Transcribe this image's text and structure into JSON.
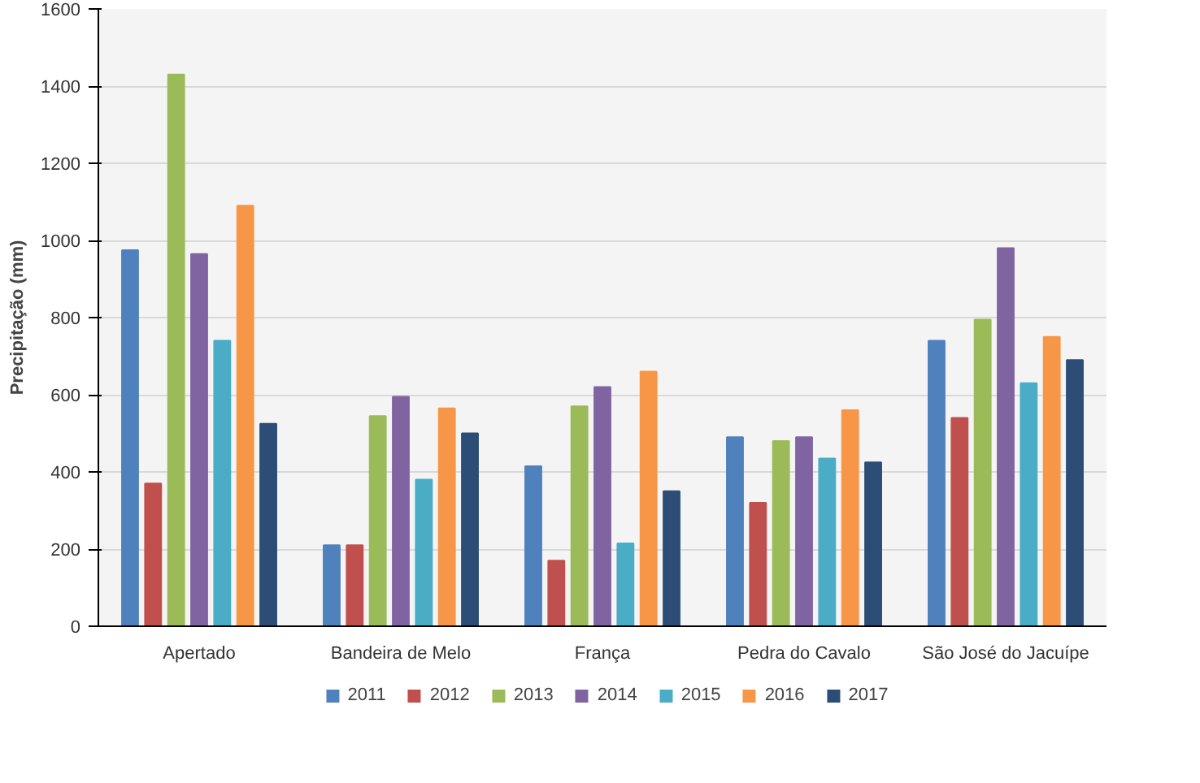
{
  "chart_data": {
    "type": "bar",
    "ylabel": "Precipitação (mm)",
    "categories": [
      "Apertado",
      "Bandeira de Melo",
      "França",
      "Pedra do Cavalo",
      "São José do Jacuípe"
    ],
    "series": [
      {
        "name": "2011",
        "color": "#4f81bd",
        "values": [
          975,
          210,
          415,
          490,
          740
        ]
      },
      {
        "name": "2012",
        "color": "#c0504d",
        "values": [
          370,
          210,
          170,
          320,
          540
        ]
      },
      {
        "name": "2013",
        "color": "#9bbb59",
        "values": [
          1430,
          545,
          570,
          480,
          795
        ]
      },
      {
        "name": "2014",
        "color": "#8064a2",
        "values": [
          965,
          595,
          620,
          490,
          980
        ]
      },
      {
        "name": "2015",
        "color": "#4bacc6",
        "values": [
          740,
          380,
          215,
          435,
          630
        ]
      },
      {
        "name": "2016",
        "color": "#f79646",
        "values": [
          1090,
          565,
          660,
          560,
          750
        ]
      },
      {
        "name": "2017",
        "color": "#2c4d75",
        "values": [
          525,
          500,
          350,
          425,
          690
        ]
      }
    ],
    "ylim": [
      0,
      1600
    ],
    "yticks": [
      0,
      200,
      400,
      600,
      800,
      1000,
      1200,
      1400,
      1600
    ],
    "grid": "y",
    "legend": "bottom"
  }
}
